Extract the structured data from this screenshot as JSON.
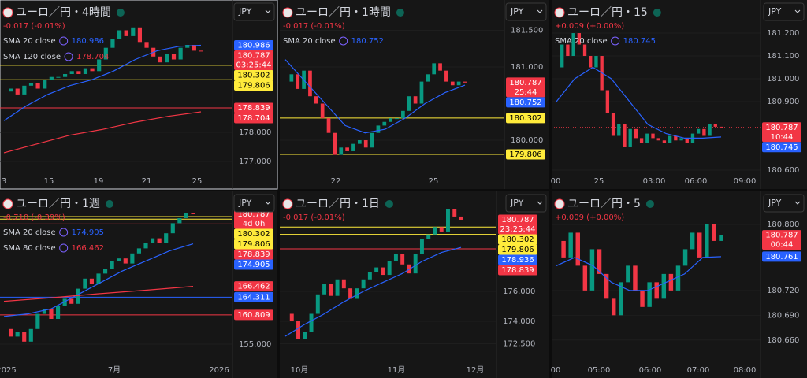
{
  "panels": [
    {
      "title": "ユーロ／円・4時間",
      "change": "-0.017 (-0.01%)",
      "change_color": "#f23645",
      "currency": "JPY",
      "indicators": [
        {
          "label": "SMA 20 close",
          "value": 180.986,
          "color": "#2962ff"
        },
        {
          "label": "SMA 120 close",
          "value": 178.704,
          "color": "#f23645"
        }
      ],
      "tags": [
        {
          "value": 180.986,
          "color": "#2962ff"
        },
        {
          "value": 180.787,
          "color": "#f23645",
          "sub": "03:25:44"
        },
        {
          "value": 180.302,
          "color": "#ffeb3b",
          "line": "solid"
        },
        {
          "value": 179.806,
          "color": "#ffeb3b",
          "line": "solid"
        },
        {
          "value": 178.839,
          "color": "#f23645",
          "line": "solid"
        },
        {
          "value": 178.704,
          "color": "#f23645"
        }
      ],
      "ylim": [
        176.65,
        182.54
      ],
      "yticks": [
        {
          "value": 178,
          "label": "178.000"
        },
        {
          "value": 177,
          "label": "177.000"
        }
      ],
      "xticks": [
        "3",
        "15",
        "19",
        "21",
        "25"
      ],
      "closes": [
        179.4,
        179.5,
        179.3,
        179.6,
        179.7,
        179.5,
        179.8,
        179.9,
        179.9,
        180.0,
        180.1,
        180.0,
        180.2,
        180.1,
        180.5,
        180.9,
        181.2,
        181.5,
        181.3,
        181.6,
        181.1,
        180.9,
        180.6,
        180.4,
        180.7,
        180.5,
        180.9,
        181.0,
        180.8,
        180.787
      ],
      "lines": [
        {
          "color": "#2962ff",
          "values": [
            178.4,
            178.9,
            179.3,
            179.6,
            179.8,
            180.1,
            180.5,
            180.8,
            180.95,
            180.986
          ]
        },
        {
          "color": "#f23645",
          "values": [
            177.3,
            177.6,
            177.9,
            178.1,
            178.35,
            178.55,
            178.704
          ]
        }
      ]
    },
    {
      "title": "ユーロ／円・1時間",
      "change": "-0.017 (-0.01%)",
      "change_color": "#f23645",
      "currency": "JPY",
      "indicators": [
        {
          "label": "SMA 20 close",
          "value": 180.752,
          "color": "#2962ff"
        }
      ],
      "tags": [
        {
          "value": 180.787,
          "color": "#f23645",
          "sub": "25:44"
        },
        {
          "value": 180.752,
          "color": "#2962ff"
        },
        {
          "value": 180.302,
          "color": "#ffeb3b",
          "line": "solid"
        },
        {
          "value": 179.806,
          "color": "#ffeb3b",
          "line": "solid"
        }
      ],
      "ylim": [
        179.57,
        181.914
      ],
      "yticks": [
        {
          "value": 181.5,
          "label": "181.500"
        },
        {
          "value": 181,
          "label": "181.000"
        },
        {
          "value": 180,
          "label": "180.000"
        }
      ],
      "xticks": [
        "22",
        "25"
      ],
      "closes": [
        180.8,
        180.9,
        180.7,
        180.95,
        180.6,
        180.5,
        180.3,
        180.1,
        179.8,
        179.9,
        179.85,
        179.95,
        180.0,
        179.9,
        180.1,
        180.2,
        180.25,
        180.3,
        180.3,
        180.4,
        180.6,
        180.5,
        180.8,
        180.9,
        181.05,
        180.95,
        180.8,
        180.75,
        180.8,
        180.787
      ],
      "lines": [
        {
          "color": "#2962ff",
          "values": [
            181.1,
            180.8,
            180.5,
            180.2,
            180.1,
            180.15,
            180.3,
            180.5,
            180.65,
            180.752
          ]
        }
      ]
    },
    {
      "title": "ユーロ／円・15",
      "change": "+0.009 (+0.00%)",
      "change_color": "#f23645",
      "currency": "JPY",
      "indicators": [
        {
          "label": "SMA 20 close",
          "value": 180.745,
          "color": "#2962ff"
        }
      ],
      "tags": [
        {
          "value": 180.787,
          "color": "#f23645",
          "sub": "10:44",
          "line": "dotted"
        },
        {
          "value": 180.745,
          "color": "#2962ff"
        }
      ],
      "ylim": [
        180.593,
        181.345
      ],
      "yticks": [
        {
          "value": 181.2,
          "label": "181.200"
        },
        {
          "value": 181.1,
          "label": "181.100"
        },
        {
          "value": 181,
          "label": "181.000"
        },
        {
          "value": 180.9,
          "label": "180.900"
        },
        {
          "value": 180.6,
          "label": "180.600"
        }
      ],
      "xticks": [
        "00",
        "25",
        "03:00",
        "06:00",
        "09:00"
      ],
      "closes": [
        181.05,
        181.15,
        181.1,
        181.2,
        181.15,
        181.1,
        181.05,
        181.1,
        180.95,
        180.85,
        180.75,
        180.8,
        180.7,
        180.78,
        180.74,
        180.72,
        180.76,
        180.74,
        180.73,
        180.72,
        180.75,
        180.73,
        180.74,
        180.72,
        180.76,
        180.78,
        180.75,
        180.8,
        180.79,
        180.787
      ],
      "lines": [
        {
          "color": "#2962ff",
          "values": [
            180.9,
            181.0,
            181.05,
            181.0,
            180.9,
            180.8,
            180.76,
            180.74,
            180.74,
            180.745
          ]
        }
      ]
    },
    {
      "title": "ユーロ／円・1週",
      "change": "-0.710 (-0.39%)",
      "change_color": "#f23645",
      "currency": "JPY",
      "indicators": [
        {
          "label": "SMA 20 close",
          "value": 174.905,
          "color": "#2962ff"
        },
        {
          "label": "SMA 80 close",
          "value": 166.462,
          "color": "#f23645"
        }
      ],
      "tags": [
        {
          "value": 180.787,
          "color": "#f23645",
          "sub": "4d 0h"
        },
        {
          "value": 180.302,
          "color": "#ffeb3b",
          "line": "solid"
        },
        {
          "value": 179.806,
          "color": "#ffeb3b",
          "line": "solid"
        },
        {
          "value": 178.839,
          "color": "#f23645",
          "line": "solid"
        },
        {
          "value": 174.905,
          "color": "#2962ff"
        },
        {
          "value": 166.462,
          "color": "#f23645"
        },
        {
          "value": 164.311,
          "color": "#2962ff",
          "line": "solid"
        },
        {
          "value": 160.809,
          "color": "#f23645",
          "line": "solid"
        }
      ],
      "ylim": [
        151.72,
        185.31
      ],
      "yticks": [
        {
          "value": 155,
          "label": "155.000"
        }
      ],
      "xticks": [
        "2025",
        "7月",
        "2026"
      ],
      "closes": [
        158,
        156.5,
        157.5,
        155.5,
        158,
        161,
        162,
        160,
        162.5,
        164,
        163,
        166,
        168,
        167,
        169,
        170,
        171.5,
        172,
        171,
        173,
        174,
        175,
        176,
        175,
        177,
        179,
        180,
        181,
        180.787
      ],
      "lines": [
        {
          "color": "#2962ff",
          "values": [
            160.5,
            161,
            162,
            164.5,
            167,
            169.5,
            171.5,
            173.5,
            174.905
          ]
        },
        {
          "color": "#f23645",
          "values": [
            163.5,
            164.2,
            165,
            165.7,
            166.462
          ]
        }
      ]
    },
    {
      "title": "ユーロ／円・1日",
      "change": "-0.017 (-0.01%)",
      "change_color": "#f23645",
      "currency": "JPY",
      "indicators": [],
      "tags": [
        {
          "value": 180.787,
          "color": "#f23645",
          "sub": "23:25:44"
        },
        {
          "value": 180.302,
          "color": "#ffeb3b",
          "line": "solid"
        },
        {
          "value": 179.806,
          "color": "#ffeb3b",
          "line": "solid"
        },
        {
          "value": 178.936,
          "color": "#2962ff"
        },
        {
          "value": 178.839,
          "color": "#f23645",
          "line": "solid"
        }
      ],
      "ylim": [
        171.37,
        182.68
      ],
      "yticks": [
        {
          "value": 176,
          "label": "176.000"
        },
        {
          "value": 174,
          "label": "174.000"
        },
        {
          "value": 172.5,
          "label": "172.500"
        }
      ],
      "xticks": [
        "10月",
        "11月",
        "12月"
      ],
      "closes": [
        174.5,
        174,
        172.8,
        173.3,
        174.5,
        175.8,
        176.5,
        175.7,
        176.8,
        176.2,
        175.5,
        176.2,
        176.8,
        177.3,
        177.6,
        177.1,
        178,
        178.5,
        177.8,
        177.2,
        178.5,
        179.5,
        179.8,
        180.3,
        180,
        181.5,
        181,
        180.787
      ],
      "lines": [
        {
          "color": "#2962ff",
          "values": [
            173,
            173.8,
            174.5,
            175.3,
            176,
            176.6,
            177.2,
            178,
            178.6,
            178.936
          ]
        }
      ]
    },
    {
      "title": "ユーロ／円・5",
      "change": "+0.009 (+0.00%)",
      "change_color": "#f23645",
      "currency": "JPY",
      "indicators": [],
      "tags": [
        {
          "value": 180.787,
          "color": "#f23645",
          "sub": "00:44"
        },
        {
          "value": 180.761,
          "color": "#2962ff"
        }
      ],
      "ylim": [
        180.635,
        180.84
      ],
      "yticks": [
        {
          "value": 180.8,
          "label": "180.800"
        },
        {
          "value": 180.72,
          "label": "180.720"
        },
        {
          "value": 180.69,
          "label": "180.690"
        },
        {
          "value": 180.66,
          "label": "180.660"
        }
      ],
      "xticks": [
        "00",
        "05:00",
        "06:00",
        "07:00",
        "08:00"
      ],
      "closes": [
        180.78,
        180.76,
        180.79,
        180.75,
        180.72,
        180.77,
        180.74,
        180.71,
        180.69,
        180.73,
        180.75,
        180.72,
        180.7,
        180.73,
        180.71,
        180.74,
        180.72,
        180.75,
        180.77,
        180.79,
        180.76,
        180.8,
        180.78,
        180.787
      ],
      "lines": [
        {
          "color": "#2962ff",
          "values": [
            180.75,
            180.76,
            180.75,
            180.73,
            180.72,
            180.72,
            180.73,
            180.74,
            180.76,
            180.761
          ]
        }
      ]
    }
  ]
}
